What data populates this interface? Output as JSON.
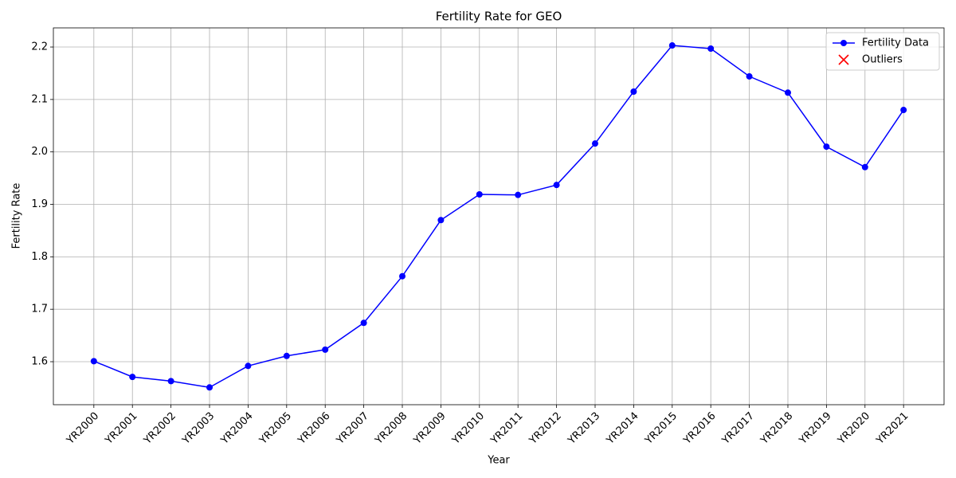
{
  "chart_data": {
    "type": "line",
    "title": "Fertility Rate for GEO",
    "x_label": "Year",
    "y_label": "Fertility Rate",
    "categories": [
      "YR2000",
      "YR2001",
      "YR2002",
      "YR2003",
      "YR2004",
      "YR2005",
      "YR2006",
      "YR2007",
      "YR2008",
      "YR2009",
      "YR2010",
      "YR2011",
      "YR2012",
      "YR2013",
      "YR2014",
      "YR2015",
      "YR2016",
      "YR2017",
      "YR2018",
      "YR2019",
      "YR2020",
      "YR2021"
    ],
    "series": [
      {
        "name": "Fertility Data",
        "color": "#0000ff",
        "marker": "o",
        "line": true,
        "values": [
          1.601,
          1.571,
          1.563,
          1.551,
          1.592,
          1.611,
          1.623,
          1.674,
          1.763,
          1.87,
          1.919,
          1.918,
          1.937,
          2.016,
          2.115,
          2.203,
          2.197,
          2.144,
          2.113,
          2.01,
          1.971,
          2.08
        ]
      },
      {
        "name": "Outliers",
        "color": "#ff0000",
        "marker": "x",
        "line": false,
        "values": [
          null,
          null,
          null,
          null,
          null,
          null,
          null,
          null,
          null,
          null,
          null,
          null,
          null,
          null,
          null,
          null,
          null,
          null,
          null,
          null,
          null,
          null
        ]
      }
    ],
    "ylim": [
      1.518,
      2.2365
    ],
    "yticks": [
      1.6,
      1.7,
      1.8,
      1.9,
      {
        "value": 2,
        "label": "2.0"
      },
      2.1,
      2.2
    ],
    "grid": true,
    "legend": "upper right"
  }
}
